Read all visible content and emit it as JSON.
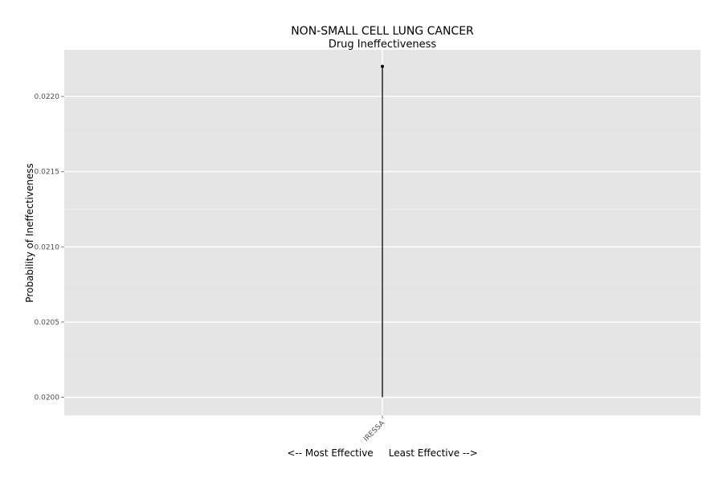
{
  "chart_data": {
    "type": "scatter",
    "title": "NON-SMALL CELL LUNG CANCER",
    "subtitle": "Drug Ineffectiveness",
    "xlabel": "<-- Most Effective     Least Effective -->",
    "ylabel": "Probability of Ineffectiveness",
    "categories": [
      "IRESSA"
    ],
    "points": [
      {
        "category": "IRESSA",
        "value": 0.0222,
        "baseline": 0.02
      }
    ],
    "y_ticks": [
      "0.0200",
      "0.0205",
      "0.0210",
      "0.0215",
      "0.0220"
    ],
    "y_tick_values": [
      0.02,
      0.0205,
      0.021,
      0.0215,
      0.022
    ],
    "ylim": [
      0.01988,
      0.02231
    ],
    "grid": true,
    "legend": "none",
    "colors": {
      "panel": "#e5e5e5",
      "grid_major": "#ffffff",
      "grid_minor": "#ebebeb",
      "segment": "#000000",
      "point": "#000000"
    }
  }
}
